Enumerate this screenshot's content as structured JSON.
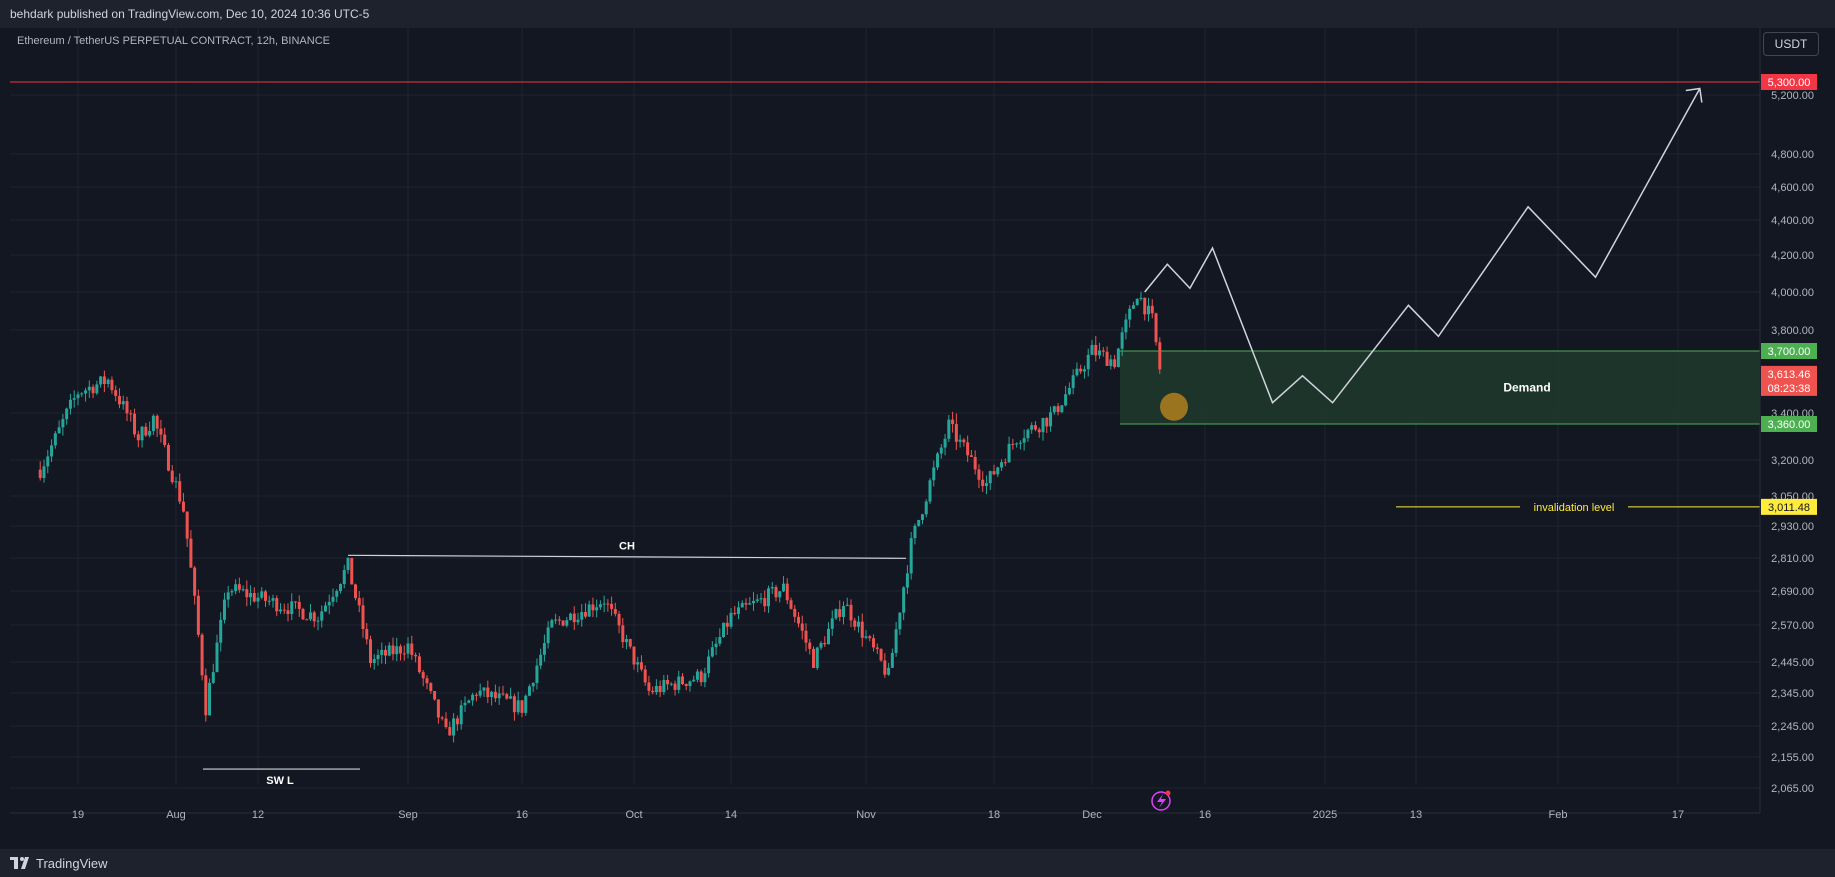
{
  "header": {
    "published_text": "behdark published on TradingView.com, Dec 10, 2024 10:36 UTC-5"
  },
  "symbol_title": "Ethereum / TetherUS PERPETUAL CONTRACT, 12h, BINANCE",
  "currency_button": "USDT",
  "footer": {
    "brand": "TradingView"
  },
  "colors": {
    "background": "#131722",
    "up": "#26a69a",
    "down": "#ef5350",
    "demand_zone": "#1e3a2a",
    "demand_border": "#4caf50",
    "resistance_line": "#f23645",
    "invalidation": "#ffeb3b",
    "projection": "#d1d4dc"
  },
  "chart_data": {
    "type": "candlestick",
    "timeframe": "12h",
    "y_axis_ticks": [
      "5,200.00",
      "4,800.00",
      "4,600.00",
      "4,400.00",
      "4,200.00",
      "4,000.00",
      "3,800.00",
      "3,400.00",
      "3,200.00",
      "3,050.00",
      "2,930.00",
      "2,810.00",
      "2,690.00",
      "2,570.00",
      "2,445.00",
      "2,345.00",
      "2,245.00",
      "2,155.00",
      "2,065.00"
    ],
    "x_axis_ticks": [
      "19",
      "Aug",
      "12",
      "Sep",
      "16",
      "Oct",
      "14",
      "Nov",
      "18",
      "Dec",
      "16",
      "2025",
      "13",
      "Feb",
      "17"
    ],
    "price_labels": {
      "resistance": "5,300.00",
      "demand_top": "3,700.00",
      "current_price": "3,613.46",
      "countdown": "08:23:38",
      "demand_bottom": "3,360.00",
      "invalidation": "3,011.48"
    },
    "annotations": {
      "demand": "Demand",
      "change_of_character": "CH",
      "swing_low": "SW L",
      "invalidation": "invalidation level"
    },
    "key_levels": {
      "resistance": 5300,
      "demand_top": 3700,
      "demand_bottom": 3360,
      "invalidation": 3011.48,
      "change_of_character": 2820,
      "swing_low": 2120
    },
    "price_path": [
      {
        "date": "2024-07-14",
        "close": 3160
      },
      {
        "date": "2024-07-19",
        "close": 3500
      },
      {
        "date": "2024-07-23",
        "close": 3560
      },
      {
        "date": "2024-07-27",
        "close": 3300
      },
      {
        "date": "2024-07-29",
        "close": 3380
      },
      {
        "date": "2024-08-02",
        "close": 3000
      },
      {
        "date": "2024-08-05",
        "close": 2300
      },
      {
        "date": "2024-08-08",
        "close": 2700
      },
      {
        "date": "2024-08-14",
        "close": 2650
      },
      {
        "date": "2024-08-20",
        "close": 2600
      },
      {
        "date": "2024-08-24",
        "close": 2780
      },
      {
        "date": "2024-08-27",
        "close": 2450
      },
      {
        "date": "2024-09-01",
        "close": 2500
      },
      {
        "date": "2024-09-06",
        "close": 2220
      },
      {
        "date": "2024-09-10",
        "close": 2350
      },
      {
        "date": "2024-09-16",
        "close": 2300
      },
      {
        "date": "2024-09-20",
        "close": 2570
      },
      {
        "date": "2024-09-27",
        "close": 2660
      },
      {
        "date": "2024-10-03",
        "close": 2350
      },
      {
        "date": "2024-10-10",
        "close": 2400
      },
      {
        "date": "2024-10-14",
        "close": 2600
      },
      {
        "date": "2024-10-21",
        "close": 2700
      },
      {
        "date": "2024-10-25",
        "close": 2450
      },
      {
        "date": "2024-10-29",
        "close": 2650
      },
      {
        "date": "2024-11-04",
        "close": 2400
      },
      {
        "date": "2024-11-07",
        "close": 2860
      },
      {
        "date": "2024-11-12",
        "close": 3350
      },
      {
        "date": "2024-11-17",
        "close": 3100
      },
      {
        "date": "2024-11-21",
        "close": 3300
      },
      {
        "date": "2024-11-26",
        "close": 3400
      },
      {
        "date": "2024-12-01",
        "close": 3700
      },
      {
        "date": "2024-12-04",
        "close": 3650
      },
      {
        "date": "2024-12-07",
        "close": 4000
      },
      {
        "date": "2024-12-09",
        "close": 3850
      },
      {
        "date": "2024-12-10",
        "close": 3613.46
      }
    ],
    "projection_path": [
      {
        "date": "2024-12-08",
        "price": 4000
      },
      {
        "date": "2024-12-11",
        "price": 4150
      },
      {
        "date": "2024-12-14",
        "price": 4020
      },
      {
        "date": "2024-12-17",
        "price": 4240
      },
      {
        "date": "2024-12-25",
        "price": 3450
      },
      {
        "date": "2024-12-29",
        "price": 3580
      },
      {
        "date": "2025-01-02",
        "price": 3450
      },
      {
        "date": "2025-01-12",
        "price": 3930
      },
      {
        "date": "2025-01-16",
        "price": 3770
      },
      {
        "date": "2025-01-28",
        "price": 4480
      },
      {
        "date": "2025-02-06",
        "price": 4080
      },
      {
        "date": "2025-02-20",
        "price": 5250
      }
    ]
  }
}
